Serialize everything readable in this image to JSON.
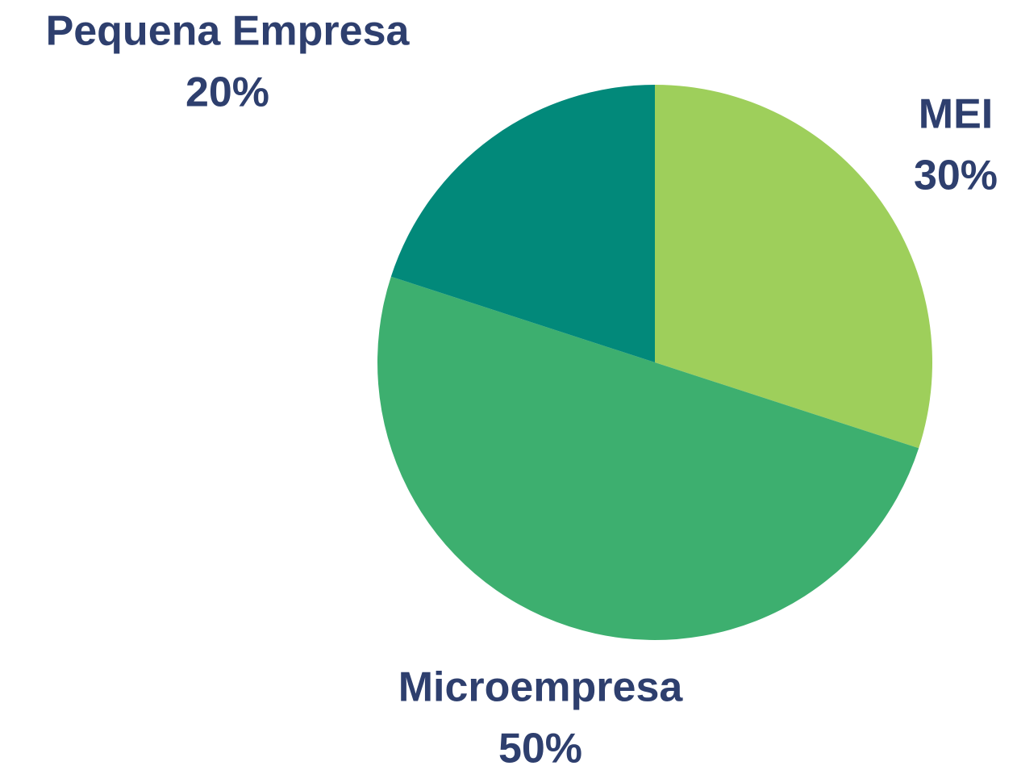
{
  "chart_data": {
    "type": "pie",
    "categories": [
      "MEI",
      "Microempresa",
      "Pequena Empresa"
    ],
    "values": [
      30,
      50,
      20
    ],
    "value_labels": [
      "30%",
      "50%",
      "20%"
    ],
    "colors": [
      "#9ecf5b",
      "#3daf6f",
      "#02897a"
    ]
  }
}
